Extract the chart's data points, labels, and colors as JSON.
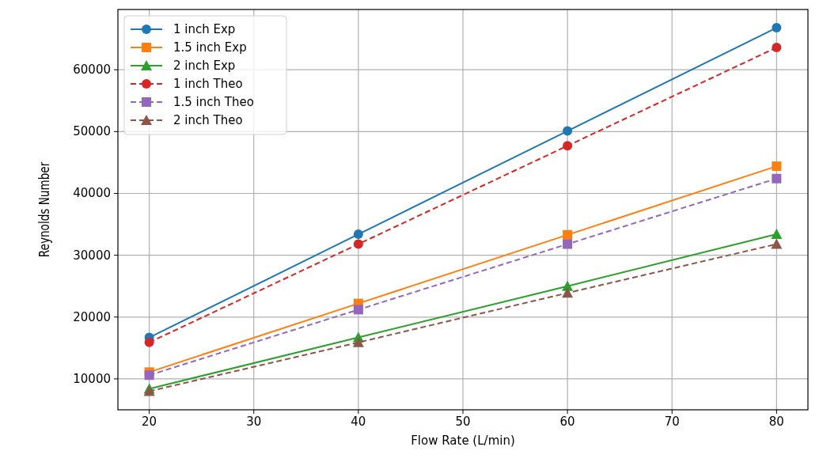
{
  "chart_data": {
    "type": "line",
    "xlabel": "Flow Rate (L/min)",
    "ylabel": "Reynolds Number",
    "x": [
      20,
      40,
      60,
      80
    ],
    "xlim": [
      17,
      83
    ],
    "xticks": [
      20,
      30,
      40,
      50,
      60,
      70,
      80
    ],
    "ylim": [
      5000,
      69750
    ],
    "yticks": [
      10000,
      20000,
      30000,
      40000,
      50000,
      60000
    ],
    "grid": true,
    "legend": "top left",
    "series": [
      {
        "name": "1 inch Exp",
        "color": "#1f77b4",
        "marker": "circle",
        "line_style": "solid",
        "values": [
          16700,
          33400,
          50100,
          66800
        ]
      },
      {
        "name": "1.5 inch Exp",
        "color": "#ff7f0e",
        "marker": "square",
        "line_style": "solid",
        "values": [
          11100,
          22200,
          33300,
          44400
        ]
      },
      {
        "name": "2 inch Exp",
        "color": "#2ca02c",
        "marker": "triangle",
        "line_style": "solid",
        "values": [
          8400,
          16700,
          25000,
          33400
        ]
      },
      {
        "name": "1 inch Theo",
        "color": "#d62728",
        "marker": "circle",
        "line_style": "dashed",
        "values": [
          15900,
          31800,
          47700,
          63600
        ]
      },
      {
        "name": "1.5 inch Theo",
        "color": "#9467bd",
        "marker": "square",
        "line_style": "dashed",
        "values": [
          10600,
          21200,
          31800,
          42400
        ]
      },
      {
        "name": "2 inch Theo",
        "color": "#8c564b",
        "marker": "triangle",
        "line_style": "dashed",
        "values": [
          8000,
          15900,
          23900,
          31800
        ]
      }
    ]
  }
}
